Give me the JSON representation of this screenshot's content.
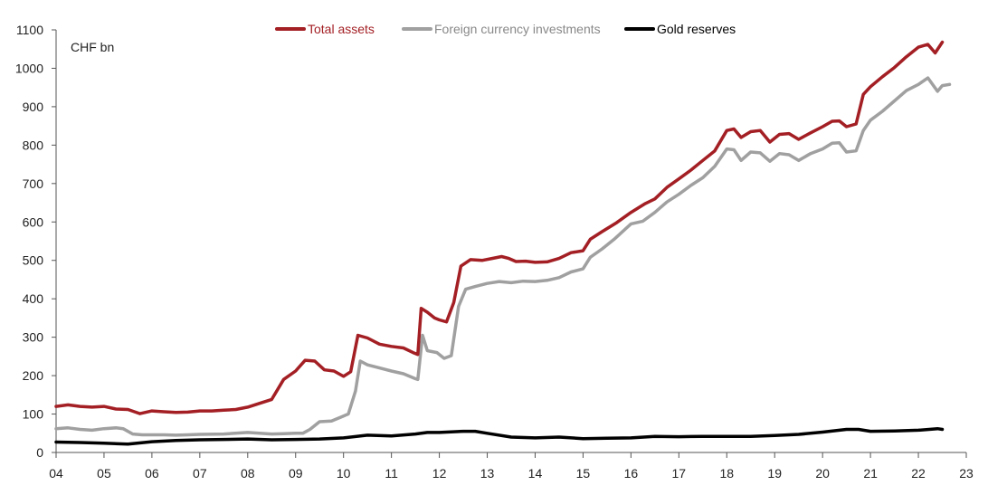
{
  "chart_data": {
    "type": "line",
    "unit_label": "CHF bn",
    "ylim": [
      0,
      1100
    ],
    "yticks": [
      0,
      100,
      200,
      300,
      400,
      500,
      600,
      700,
      800,
      900,
      1000,
      1100
    ],
    "xlim": [
      2004,
      2023
    ],
    "xtick_labels": [
      "04",
      "05",
      "06",
      "07",
      "08",
      "09",
      "10",
      "11",
      "12",
      "13",
      "14",
      "15",
      "16",
      "17",
      "18",
      "19",
      "20",
      "21",
      "22",
      "23"
    ],
    "grid": false,
    "legend_position": "top-center",
    "series": [
      {
        "name": "Total assets",
        "color": "#a31f24",
        "points": [
          [
            2004.0,
            120
          ],
          [
            2004.25,
            124
          ],
          [
            2004.5,
            120
          ],
          [
            2004.75,
            118
          ],
          [
            2005.0,
            120
          ],
          [
            2005.25,
            113
          ],
          [
            2005.5,
            112
          ],
          [
            2005.75,
            101
          ],
          [
            2006.0,
            108
          ],
          [
            2006.25,
            106
          ],
          [
            2006.5,
            104
          ],
          [
            2006.75,
            105
          ],
          [
            2007.0,
            108
          ],
          [
            2007.25,
            108
          ],
          [
            2007.5,
            110
          ],
          [
            2007.75,
            112
          ],
          [
            2008.0,
            118
          ],
          [
            2008.25,
            128
          ],
          [
            2008.5,
            138
          ],
          [
            2008.75,
            190
          ],
          [
            2009.0,
            212
          ],
          [
            2009.2,
            240
          ],
          [
            2009.4,
            238
          ],
          [
            2009.6,
            215
          ],
          [
            2009.8,
            212
          ],
          [
            2010.0,
            198
          ],
          [
            2010.15,
            210
          ],
          [
            2010.3,
            305
          ],
          [
            2010.5,
            298
          ],
          [
            2010.75,
            282
          ],
          [
            2011.0,
            276
          ],
          [
            2011.25,
            272
          ],
          [
            2011.45,
            260
          ],
          [
            2011.55,
            255
          ],
          [
            2011.62,
            375
          ],
          [
            2011.75,
            365
          ],
          [
            2011.9,
            350
          ],
          [
            2012.0,
            345
          ],
          [
            2012.15,
            340
          ],
          [
            2012.3,
            390
          ],
          [
            2012.45,
            485
          ],
          [
            2012.65,
            502
          ],
          [
            2012.9,
            500
          ],
          [
            2013.1,
            505
          ],
          [
            2013.3,
            510
          ],
          [
            2013.45,
            505
          ],
          [
            2013.6,
            497
          ],
          [
            2013.8,
            498
          ],
          [
            2014.0,
            495
          ],
          [
            2014.25,
            496
          ],
          [
            2014.5,
            505
          ],
          [
            2014.75,
            520
          ],
          [
            2015.0,
            525
          ],
          [
            2015.15,
            555
          ],
          [
            2015.4,
            575
          ],
          [
            2015.7,
            598
          ],
          [
            2016.0,
            625
          ],
          [
            2016.3,
            648
          ],
          [
            2016.5,
            660
          ],
          [
            2016.75,
            690
          ],
          [
            2017.0,
            712
          ],
          [
            2017.25,
            735
          ],
          [
            2017.5,
            760
          ],
          [
            2017.75,
            785
          ],
          [
            2018.0,
            838
          ],
          [
            2018.15,
            842
          ],
          [
            2018.3,
            820
          ],
          [
            2018.5,
            835
          ],
          [
            2018.7,
            838
          ],
          [
            2018.9,
            808
          ],
          [
            2019.1,
            828
          ],
          [
            2019.3,
            830
          ],
          [
            2019.5,
            815
          ],
          [
            2019.75,
            832
          ],
          [
            2020.0,
            848
          ],
          [
            2020.2,
            862
          ],
          [
            2020.35,
            863
          ],
          [
            2020.5,
            848
          ],
          [
            2020.7,
            855
          ],
          [
            2020.85,
            932
          ],
          [
            2021.0,
            952
          ],
          [
            2021.25,
            978
          ],
          [
            2021.5,
            1002
          ],
          [
            2021.75,
            1030
          ],
          [
            2022.0,
            1055
          ],
          [
            2022.2,
            1062
          ],
          [
            2022.35,
            1040
          ],
          [
            2022.5,
            1068
          ]
        ]
      },
      {
        "name": "Foreign currency investments",
        "color": "#a0a0a0",
        "points": [
          [
            2004.0,
            62
          ],
          [
            2004.25,
            64
          ],
          [
            2004.5,
            60
          ],
          [
            2004.75,
            58
          ],
          [
            2005.0,
            62
          ],
          [
            2005.25,
            64
          ],
          [
            2005.4,
            62
          ],
          [
            2005.6,
            48
          ],
          [
            2005.8,
            46
          ],
          [
            2006.0,
            46
          ],
          [
            2006.25,
            46
          ],
          [
            2006.5,
            45
          ],
          [
            2006.75,
            46
          ],
          [
            2007.0,
            47
          ],
          [
            2007.5,
            48
          ],
          [
            2008.0,
            52
          ],
          [
            2008.25,
            50
          ],
          [
            2008.5,
            48
          ],
          [
            2008.75,
            49
          ],
          [
            2009.0,
            50
          ],
          [
            2009.15,
            50
          ],
          [
            2009.3,
            60
          ],
          [
            2009.5,
            80
          ],
          [
            2009.75,
            82
          ],
          [
            2010.0,
            95
          ],
          [
            2010.1,
            100
          ],
          [
            2010.25,
            160
          ],
          [
            2010.35,
            238
          ],
          [
            2010.5,
            228
          ],
          [
            2010.75,
            220
          ],
          [
            2011.0,
            212
          ],
          [
            2011.25,
            205
          ],
          [
            2011.5,
            192
          ],
          [
            2011.55,
            190
          ],
          [
            2011.65,
            305
          ],
          [
            2011.75,
            265
          ],
          [
            2011.95,
            260
          ],
          [
            2012.1,
            245
          ],
          [
            2012.25,
            252
          ],
          [
            2012.4,
            380
          ],
          [
            2012.55,
            425
          ],
          [
            2012.75,
            432
          ],
          [
            2013.0,
            440
          ],
          [
            2013.25,
            445
          ],
          [
            2013.5,
            442
          ],
          [
            2013.75,
            446
          ],
          [
            2014.0,
            445
          ],
          [
            2014.25,
            448
          ],
          [
            2014.5,
            455
          ],
          [
            2014.75,
            470
          ],
          [
            2015.0,
            478
          ],
          [
            2015.15,
            508
          ],
          [
            2015.4,
            530
          ],
          [
            2015.65,
            555
          ],
          [
            2016.0,
            595
          ],
          [
            2016.25,
            602
          ],
          [
            2016.5,
            625
          ],
          [
            2016.75,
            652
          ],
          [
            2017.0,
            672
          ],
          [
            2017.25,
            695
          ],
          [
            2017.5,
            715
          ],
          [
            2017.75,
            745
          ],
          [
            2018.0,
            790
          ],
          [
            2018.15,
            788
          ],
          [
            2018.3,
            760
          ],
          [
            2018.5,
            782
          ],
          [
            2018.7,
            780
          ],
          [
            2018.9,
            758
          ],
          [
            2019.1,
            778
          ],
          [
            2019.3,
            775
          ],
          [
            2019.5,
            760
          ],
          [
            2019.75,
            778
          ],
          [
            2020.0,
            790
          ],
          [
            2020.2,
            805
          ],
          [
            2020.35,
            806
          ],
          [
            2020.5,
            782
          ],
          [
            2020.7,
            785
          ],
          [
            2020.85,
            838
          ],
          [
            2021.0,
            865
          ],
          [
            2021.25,
            888
          ],
          [
            2021.5,
            915
          ],
          [
            2021.75,
            942
          ],
          [
            2022.0,
            958
          ],
          [
            2022.2,
            975
          ],
          [
            2022.4,
            940
          ],
          [
            2022.5,
            955
          ],
          [
            2022.65,
            958
          ]
        ]
      },
      {
        "name": "Gold reserves",
        "color": "#000000",
        "points": [
          [
            2004.0,
            27
          ],
          [
            2004.5,
            26
          ],
          [
            2005.0,
            24
          ],
          [
            2005.5,
            22
          ],
          [
            2006.0,
            28
          ],
          [
            2006.5,
            31
          ],
          [
            2007.0,
            33
          ],
          [
            2007.5,
            34
          ],
          [
            2008.0,
            35
          ],
          [
            2008.5,
            33
          ],
          [
            2009.0,
            34
          ],
          [
            2009.5,
            35
          ],
          [
            2010.0,
            38
          ],
          [
            2010.5,
            45
          ],
          [
            2011.0,
            43
          ],
          [
            2011.5,
            48
          ],
          [
            2011.75,
            52
          ],
          [
            2012.0,
            52
          ],
          [
            2012.5,
            55
          ],
          [
            2012.75,
            55
          ],
          [
            2013.0,
            50
          ],
          [
            2013.5,
            40
          ],
          [
            2014.0,
            38
          ],
          [
            2014.5,
            40
          ],
          [
            2015.0,
            36
          ],
          [
            2015.5,
            37
          ],
          [
            2016.0,
            38
          ],
          [
            2016.5,
            42
          ],
          [
            2017.0,
            41
          ],
          [
            2017.5,
            42
          ],
          [
            2018.0,
            42
          ],
          [
            2018.5,
            42
          ],
          [
            2019.0,
            44
          ],
          [
            2019.5,
            47
          ],
          [
            2020.0,
            53
          ],
          [
            2020.5,
            60
          ],
          [
            2020.75,
            60
          ],
          [
            2021.0,
            55
          ],
          [
            2021.5,
            56
          ],
          [
            2022.0,
            58
          ],
          [
            2022.4,
            62
          ],
          [
            2022.5,
            60
          ]
        ]
      }
    ]
  }
}
